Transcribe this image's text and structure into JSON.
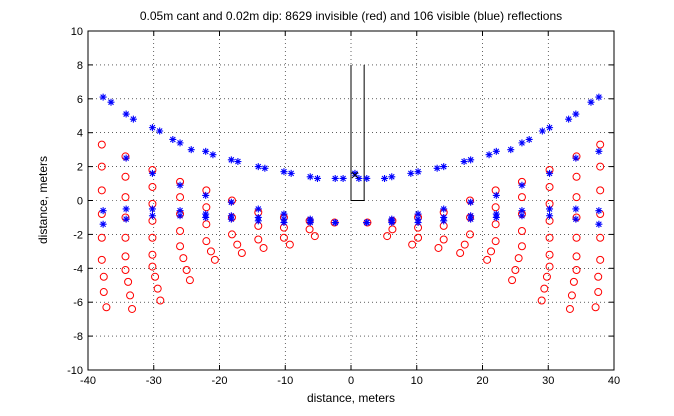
{
  "chart_data": {
    "type": "scatter",
    "title": "0.05m cant and 0.02m dip: 8629 invisible (red) and 106 visible (blue) reflections",
    "xlabel": "distance, meters",
    "ylabel": "distance, meters",
    "xlim": [
      -40,
      40
    ],
    "ylim": [
      -10,
      10
    ],
    "xticks": [
      -40,
      -30,
      -20,
      -10,
      0,
      10,
      20,
      30,
      40
    ],
    "yticks": [
      -10,
      -8,
      -6,
      -4,
      -2,
      0,
      2,
      4,
      6,
      8,
      10
    ],
    "grid": true,
    "series": [
      {
        "color": "#ff0000",
        "marker": "circle",
        "x": [
          -37.9,
          -37.9,
          -37.9,
          -37.9,
          -37.9,
          -37.9,
          -37.6,
          -37.6,
          -37.2,
          -34.3,
          -34.3,
          -34.3,
          -34.3,
          -34.3,
          -34.3,
          -34.3,
          -33.9,
          -33.6,
          -33.3,
          -30.2,
          -30.2,
          -30.2,
          -30.2,
          -30.2,
          -30.2,
          -30.2,
          -29.8,
          -29.4,
          -29.0,
          -26.0,
          -26.0,
          -26.0,
          -26.0,
          -26.0,
          -25.5,
          -25.0,
          -24.5,
          -22.0,
          -22.0,
          -22.0,
          -22.0,
          -21.3,
          -20.7,
          -18.1,
          -18.1,
          -18.1,
          -17.3,
          -16.6,
          -14.1,
          -14.1,
          -14.1,
          -13.3,
          -10.2,
          -10.2,
          -10.2,
          -9.3,
          -6.3,
          -6.3,
          -5.5,
          -2.5,
          2.5,
          5.5,
          6.3,
          6.3,
          9.3,
          10.2,
          10.2,
          10.2,
          13.3,
          14.1,
          14.1,
          14.1,
          16.6,
          17.3,
          18.1,
          18.1,
          18.1,
          20.7,
          21.3,
          22.0,
          22.0,
          22.0,
          22.0,
          24.5,
          25.0,
          25.5,
          26.0,
          26.0,
          26.0,
          26.0,
          26.0,
          29.0,
          29.4,
          29.8,
          30.2,
          30.2,
          30.2,
          30.2,
          30.2,
          30.2,
          30.2,
          33.3,
          33.6,
          33.9,
          34.3,
          34.3,
          34.3,
          34.3,
          34.3,
          34.3,
          34.3,
          37.2,
          37.6,
          37.6,
          37.9,
          37.9,
          37.9,
          37.9,
          37.9,
          37.9
        ],
        "y": [
          3.3,
          2.0,
          0.6,
          -0.8,
          -2.2,
          -3.5,
          -4.5,
          -5.4,
          -6.3,
          2.6,
          1.4,
          0.2,
          -1.0,
          -2.2,
          -3.3,
          -4.1,
          -4.8,
          -5.6,
          -6.4,
          1.8,
          0.8,
          -0.2,
          -1.2,
          -2.2,
          -3.2,
          -3.9,
          -4.5,
          -5.2,
          -5.9,
          1.1,
          0.2,
          -0.8,
          -1.8,
          -2.7,
          -3.4,
          -4.1,
          -4.7,
          0.6,
          -0.4,
          -1.4,
          -2.4,
          -3.0,
          -3.5,
          0.0,
          -1.0,
          -2.0,
          -2.6,
          -3.1,
          -0.7,
          -1.5,
          -2.3,
          -2.8,
          -1.0,
          -1.6,
          -2.2,
          -2.6,
          -1.2,
          -1.7,
          -2.1,
          -1.3,
          -1.3,
          -2.1,
          -1.7,
          -1.2,
          -2.6,
          -2.2,
          -1.6,
          -1.0,
          -2.8,
          -2.3,
          -1.5,
          -0.7,
          -3.1,
          -2.6,
          -2.0,
          -1.0,
          0.0,
          -3.5,
          -3.0,
          -2.4,
          -1.4,
          -0.4,
          0.6,
          -4.7,
          -4.1,
          -3.4,
          -2.7,
          -1.8,
          -0.8,
          0.2,
          1.1,
          -5.9,
          -5.2,
          -4.5,
          -3.9,
          -3.2,
          -2.2,
          -1.2,
          -0.2,
          0.8,
          1.8,
          -6.4,
          -5.6,
          -4.8,
          -4.1,
          -3.3,
          -2.2,
          -1.0,
          0.2,
          1.4,
          2.6,
          -6.3,
          -5.4,
          -4.5,
          -3.5,
          -2.2,
          -0.8,
          0.6,
          2.0,
          3.3
        ]
      },
      {
        "color": "#0000ff",
        "marker": "star",
        "x": [
          -37.7,
          -36.5,
          -34.2,
          -33.1,
          -30.2,
          -29.1,
          -27.1,
          -26.0,
          -24.3,
          -22.1,
          -21.0,
          -18.2,
          -17.2,
          -14.1,
          -13.1,
          -10.2,
          -9.1,
          -6.2,
          -5.1,
          -2.4,
          -1.2,
          1.2,
          2.4,
          5.1,
          6.2,
          9.1,
          10.2,
          13.1,
          14.1,
          17.2,
          18.2,
          21.0,
          22.1,
          24.3,
          26.0,
          27.1,
          29.1,
          30.2,
          33.1,
          34.2,
          36.5,
          37.7,
          -37.7,
          -34.2,
          -30.2,
          -26.0,
          -22.1,
          -18.2,
          -14.1,
          -10.2,
          -6.2,
          -2.4,
          2.4,
          6.2,
          10.2,
          14.1,
          18.2,
          22.1,
          26.0,
          30.2,
          34.2,
          37.7,
          -37.7,
          -34.2,
          -30.2,
          -26.0,
          -22.1,
          -18.2,
          -14.1,
          -10.2,
          -6.2,
          -2.4,
          2.4,
          6.2,
          10.2,
          14.1,
          18.2,
          22.1,
          26.0,
          30.2,
          34.2,
          37.7,
          -34.2,
          -30.2,
          -26.0,
          -22.1,
          -18.2,
          -14.1,
          -10.2,
          -6.2,
          -2.4,
          2.4,
          6.2,
          10.2,
          14.1,
          18.2,
          22.1,
          26.0,
          30.2,
          34.2,
          37.7,
          0.6
        ],
        "y": [
          6.1,
          5.8,
          5.1,
          4.8,
          4.3,
          4.1,
          3.6,
          3.4,
          3.0,
          2.9,
          2.7,
          2.4,
          2.3,
          2.0,
          1.9,
          1.7,
          1.6,
          1.4,
          1.3,
          1.3,
          1.3,
          1.3,
          1.3,
          1.3,
          1.4,
          1.6,
          1.7,
          1.9,
          2.0,
          2.3,
          2.4,
          2.7,
          2.9,
          3.0,
          3.4,
          3.6,
          4.1,
          4.3,
          4.8,
          5.1,
          5.8,
          6.1,
          -0.6,
          -0.5,
          -0.5,
          -0.6,
          -0.8,
          -0.9,
          -1.0,
          -1.1,
          -1.2,
          -1.3,
          -1.3,
          -1.2,
          -1.1,
          -1.0,
          -0.9,
          -0.8,
          -0.6,
          -0.5,
          -0.5,
          -0.6,
          -1.4,
          -1.1,
          -0.9,
          -0.9,
          -1.0,
          -1.1,
          -1.2,
          -1.3,
          -1.3,
          -1.3,
          -1.3,
          -1.3,
          -1.3,
          -1.2,
          -1.1,
          -1.0,
          -0.9,
          -0.9,
          -1.1,
          -1.4,
          2.5,
          1.6,
          0.9,
          0.3,
          -0.1,
          -0.5,
          -0.8,
          -1.1,
          -1.3,
          -1.3,
          -1.1,
          -0.8,
          -0.5,
          -0.1,
          0.3,
          0.9,
          1.6,
          2.5,
          2.9,
          1.6
        ]
      },
      {
        "color": "#000000",
        "marker": "x",
        "x": [
          0.6
        ],
        "y": [
          1.5
        ]
      }
    ],
    "annotations": [
      {
        "type": "polyline",
        "color": "#000000",
        "points": [
          [
            0,
            0
          ],
          [
            0,
            8
          ],
          [
            0,
            0
          ],
          [
            2,
            0
          ],
          [
            2,
            8
          ]
        ]
      }
    ]
  }
}
